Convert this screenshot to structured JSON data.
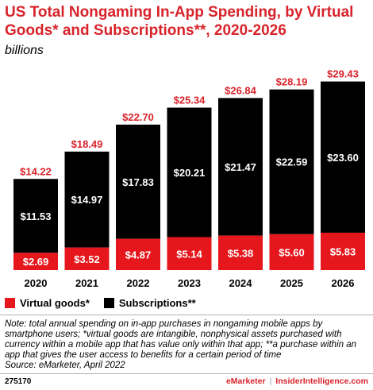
{
  "title": "US Total Nongaming In-App Spending, by Virtual Goods* and Subscriptions**, 2020-2026",
  "subtitle": "billions",
  "colors": {
    "virtual_goods": "#e5161c",
    "subscriptions": "#000000",
    "total_label": "#d8232a"
  },
  "chart_data": {
    "type": "bar",
    "stacked": true,
    "categories": [
      "2020",
      "2021",
      "2022",
      "2023",
      "2024",
      "2025",
      "2026"
    ],
    "series": [
      {
        "name": "Virtual goods*",
        "values": [
          2.69,
          3.52,
          4.87,
          5.14,
          5.38,
          5.6,
          5.83
        ],
        "labels": [
          "$2.69",
          "$3.52",
          "$4.87",
          "$5.14",
          "$5.38",
          "$5.60",
          "$5.83"
        ]
      },
      {
        "name": "Subscriptions**",
        "values": [
          11.53,
          14.97,
          17.83,
          20.21,
          21.47,
          22.59,
          23.6
        ],
        "labels": [
          "$11.53",
          "$14.97",
          "$17.83",
          "$20.21",
          "$21.47",
          "$22.59",
          "$23.60"
        ]
      }
    ],
    "totals": [
      14.22,
      18.49,
      22.7,
      25.34,
      26.84,
      28.19,
      29.43
    ],
    "total_labels": [
      "$14.22",
      "$18.49",
      "$22.70",
      "$25.34",
      "$26.84",
      "$28.19",
      "$29.43"
    ],
    "ylim": [
      0,
      30
    ],
    "legend_position": "bottom-left",
    "grid": false
  },
  "legend": {
    "virtual_goods": "Virtual goods*",
    "subscriptions": "Subscriptions**"
  },
  "note": "Note: total annual spending on in-app purchases in nongaming mobile apps by smartphone users; *virtual goods are intangible, nonphysical assets purchased with currency within a mobile app that has value only within that app; **a purchase within an app that gives the user access to benefits for a certain period of time",
  "source": "Source: eMarketer, April 2022",
  "footer": {
    "chart_id": "275170",
    "brand_a": "eMarketer",
    "separator": "|",
    "brand_b": "InsiderIntelligence.com"
  }
}
